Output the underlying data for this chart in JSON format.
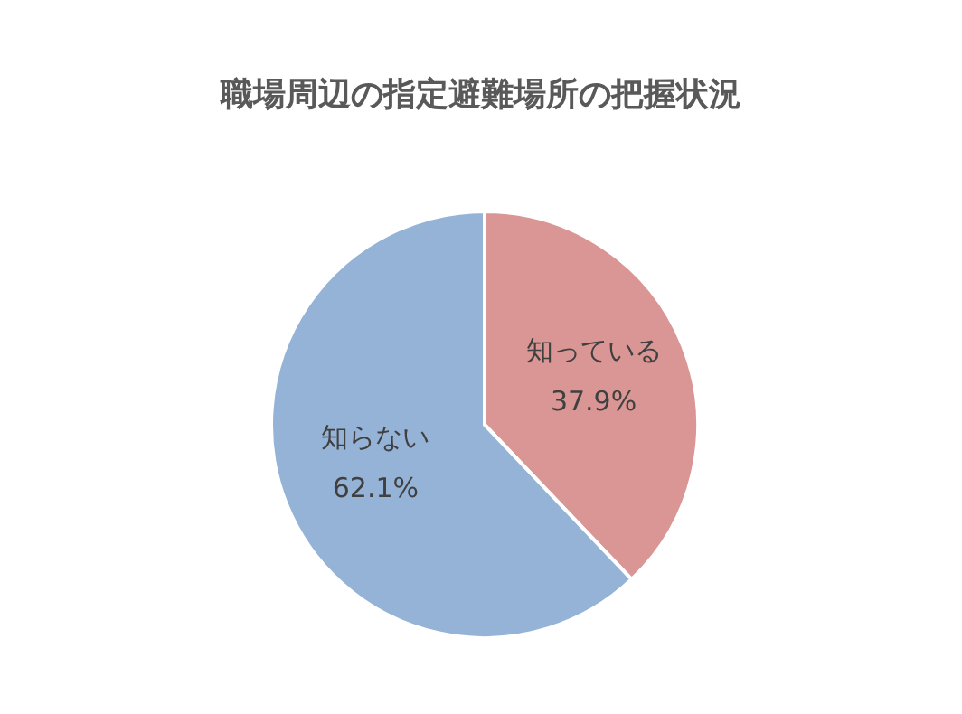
{
  "chart_data": {
    "type": "pie",
    "title": "職場周辺の指定避難場所の把握状況",
    "categories": [
      "知っている",
      "知らない"
    ],
    "values": [
      37.9,
      62.1
    ],
    "value_labels": [
      "37.9%",
      "62.1%"
    ],
    "colors": [
      "#d99694",
      "#95b3d7"
    ]
  }
}
